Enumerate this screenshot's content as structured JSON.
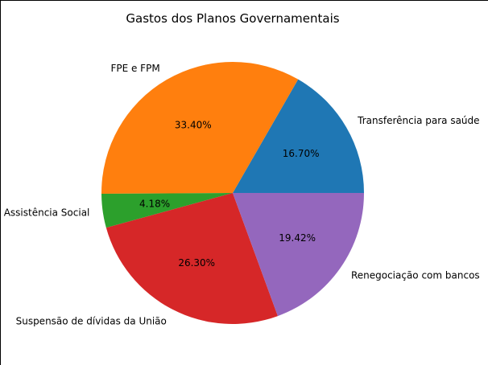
{
  "chart_data": {
    "type": "pie",
    "title": "Gastos dos Planos Governamentais",
    "slices": [
      {
        "label": "Transferência para saúde",
        "value": 16.7,
        "pct_label": "16.70%",
        "color": "#1f77b4"
      },
      {
        "label": "FPE e FPM",
        "value": 33.4,
        "pct_label": "33.40%",
        "color": "#ff7f0e"
      },
      {
        "label": "Assistência Social",
        "value": 4.18,
        "pct_label": "4.18%",
        "color": "#2ca02c"
      },
      {
        "label": "Suspensão de dívidas da União",
        "value": 26.3,
        "pct_label": "26.30%",
        "color": "#d62728"
      },
      {
        "label": "Renegociação com bancos",
        "value": 19.42,
        "pct_label": "19.42%",
        "color": "#9467bd"
      }
    ],
    "start_angle_deg": 0,
    "direction": "counterclockwise"
  }
}
